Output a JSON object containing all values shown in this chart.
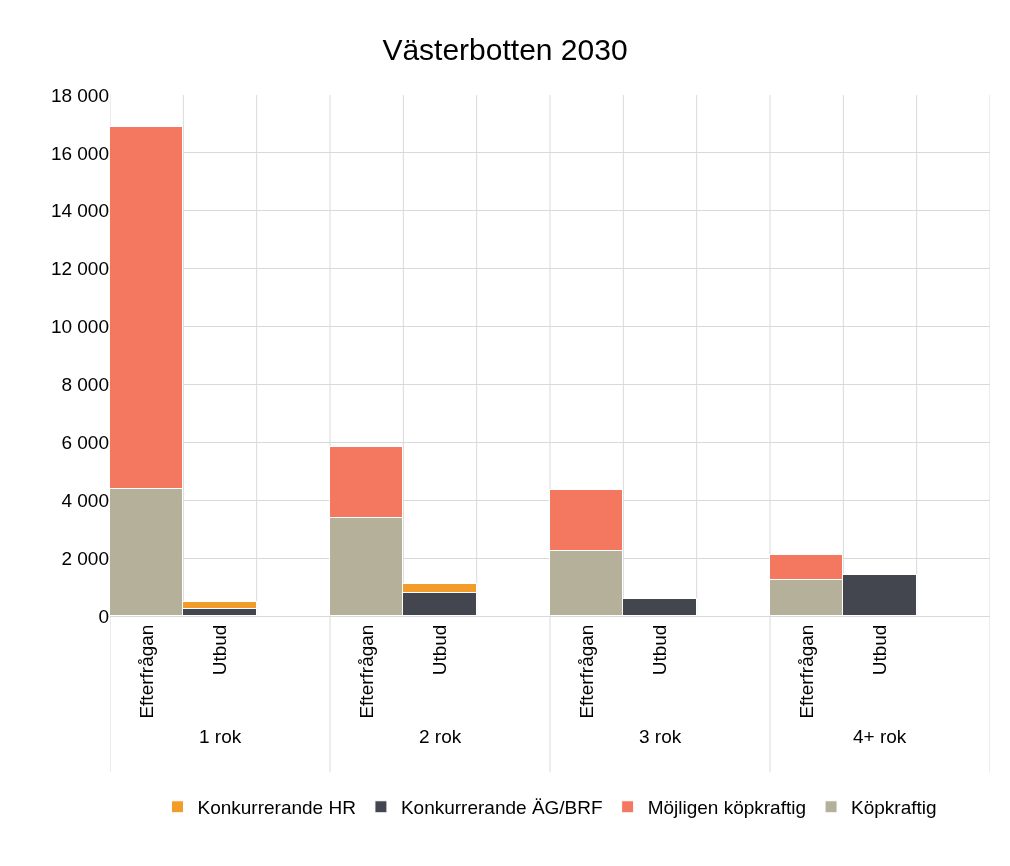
{
  "chart_data": {
    "type": "bar",
    "title": "Västerbotten 2030",
    "stacked": true,
    "categories": [
      "Efterfrågan",
      "Utbud",
      null,
      "Efterfrågan",
      "Utbud",
      null,
      "Efterfrågan",
      "Utbud",
      null,
      "Efterfrågan",
      "Utbud",
      null
    ],
    "series": [
      {
        "name": "Köpkraftig",
        "color": "#b5b09a",
        "values": [
          4400,
          null,
          null,
          3400,
          null,
          null,
          2250,
          null,
          null,
          1250,
          null,
          null
        ]
      },
      {
        "name": "Möjligen köpkraftig",
        "color": "#f4775f",
        "values": [
          12500,
          null,
          null,
          2450,
          null,
          null,
          2100,
          null,
          null,
          850,
          null,
          null
        ]
      },
      {
        "name": "Konkurrerande ÄG/BRF",
        "color": "#44464f",
        "values": [
          null,
          250,
          null,
          null,
          800,
          null,
          null,
          600,
          null,
          null,
          1400,
          null
        ]
      },
      {
        "name": "Konkurrerande HR",
        "color": "#f29d2a",
        "values": [
          null,
          250,
          null,
          null,
          300,
          null,
          null,
          null,
          null,
          null,
          null,
          null
        ]
      }
    ],
    "ylim": [
      0,
      18000
    ],
    "yticks": [
      0,
      {
        "value": 2000,
        "label": "2 000"
      },
      {
        "value": 4000,
        "label": "4 000"
      },
      {
        "value": 6000,
        "label": "6 000"
      },
      {
        "value": 8000,
        "label": "8 000"
      },
      {
        "value": 10000,
        "label": "10 000"
      },
      {
        "value": 12000,
        "label": "12 000"
      },
      {
        "value": 14000,
        "label": "14 000"
      },
      {
        "value": 16000,
        "label": "16 000"
      },
      {
        "value": 18000,
        "label": "18 000"
      }
    ],
    "annotations": [
      "1 rok",
      "2 rok",
      "3 rok",
      "4+ rok"
    ],
    "grid": true,
    "legend": "bottom"
  }
}
